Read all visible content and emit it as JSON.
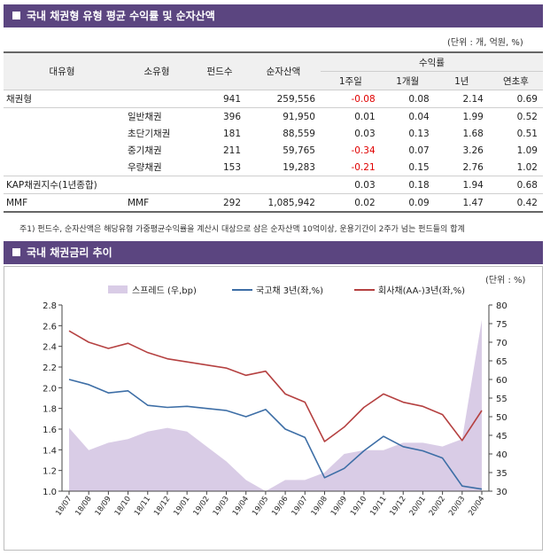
{
  "section1": {
    "title": "국내 채권형 유형 평균 수익률 및 순자산액",
    "unit_note": "(단위 : 개, 억원, %)"
  },
  "table": {
    "headers": {
      "major": "대유형",
      "minor": "소유형",
      "funds": "펀드수",
      "assets": "순자산액",
      "returns": "수익률",
      "w1": "1주일",
      "m1": "1개월",
      "y1": "1년",
      "ytd": "연초후"
    },
    "rows": [
      {
        "major": "채권형",
        "minor": "",
        "funds": "941",
        "assets": "259,556",
        "w1": "-0.08",
        "m1": "0.08",
        "y1": "2.14",
        "ytd": "0.69"
      },
      {
        "major": "",
        "minor": "일반채권",
        "funds": "396",
        "assets": "91,950",
        "w1": "0.01",
        "m1": "0.04",
        "y1": "1.99",
        "ytd": "0.52"
      },
      {
        "major": "",
        "minor": "초단기채권",
        "funds": "181",
        "assets": "88,559",
        "w1": "0.03",
        "m1": "0.13",
        "y1": "1.68",
        "ytd": "0.51"
      },
      {
        "major": "",
        "minor": "중기채권",
        "funds": "211",
        "assets": "59,765",
        "w1": "-0.34",
        "m1": "0.07",
        "y1": "3.26",
        "ytd": "1.09"
      },
      {
        "major": "",
        "minor": "우량채권",
        "funds": "153",
        "assets": "19,283",
        "w1": "-0.21",
        "m1": "0.15",
        "y1": "2.76",
        "ytd": "1.02"
      },
      {
        "major": "KAP채권지수(1년종합)",
        "minor": "",
        "funds": "",
        "assets": "",
        "w1": "0.03",
        "m1": "0.18",
        "y1": "1.94",
        "ytd": "0.68"
      },
      {
        "major": "MMF",
        "minor": "MMF",
        "funds": "292",
        "assets": "1,085,942",
        "w1": "0.02",
        "m1": "0.09",
        "y1": "1.47",
        "ytd": "0.42"
      }
    ],
    "footnote": "주1) 펀드수, 순자산액은 해당유형 가중평균수익률을 계산시 대상으로 삼은 순자산액 10억이상, 운용기간이 2주가 넘는 펀드들의 합계"
  },
  "section2": {
    "title": "국내 채권금리 추이",
    "unit_note": "(단위 : %)"
  },
  "colors": {
    "header_bar": "#5b4580",
    "spread": "#d9cce6",
    "gov": "#3d6ea6",
    "corp": "#b54141",
    "negative": "#e00000"
  },
  "chart_data": {
    "type": "line",
    "x": [
      "18/07",
      "18/08",
      "18/09",
      "18/10",
      "18/11",
      "18/12",
      "19/01",
      "19/02",
      "19/03",
      "19/04",
      "19/05",
      "19/06",
      "19/07",
      "19/08",
      "19/09",
      "19/10",
      "19/11",
      "19/12",
      "20/01",
      "20/02",
      "20/03",
      "20/04"
    ],
    "series": [
      {
        "name": "스프레드 (우,bp)",
        "kind": "area",
        "axis": "right",
        "values": [
          47,
          41,
          43,
          44,
          46,
          47,
          46,
          42,
          38,
          33,
          30,
          33,
          33,
          35,
          40,
          41,
          41,
          43,
          43,
          42,
          44,
          76
        ]
      },
      {
        "name": "국고채 3년(좌,%)",
        "kind": "line",
        "axis": "left",
        "values": [
          2.08,
          2.03,
          1.95,
          1.97,
          1.83,
          1.81,
          1.82,
          1.8,
          1.78,
          1.72,
          1.79,
          1.6,
          1.52,
          1.13,
          1.22,
          1.39,
          1.53,
          1.43,
          1.39,
          1.32,
          1.05,
          1.02
        ]
      },
      {
        "name": "회사채(AA-)3년(좌,%)",
        "kind": "line",
        "axis": "right-scale-left",
        "values": [
          2.55,
          2.44,
          2.38,
          2.43,
          2.34,
          2.28,
          2.25,
          2.22,
          2.19,
          2.12,
          2.16,
          1.94,
          1.86,
          1.48,
          1.62,
          1.81,
          1.94,
          1.86,
          1.82,
          1.74,
          1.49,
          1.78
        ]
      }
    ],
    "y_left": {
      "range": [
        1.0,
        2.8
      ],
      "ticks": [
        "1.0",
        "1.2",
        "1.4",
        "1.6",
        "1.8",
        "2.0",
        "2.2",
        "2.4",
        "2.6",
        "2.8"
      ]
    },
    "y_right": {
      "range": [
        30,
        80
      ],
      "ticks": [
        "30",
        "35",
        "40",
        "45",
        "50",
        "55",
        "60",
        "65",
        "70",
        "75",
        "80"
      ]
    },
    "legend_position": "top",
    "grid": false
  }
}
